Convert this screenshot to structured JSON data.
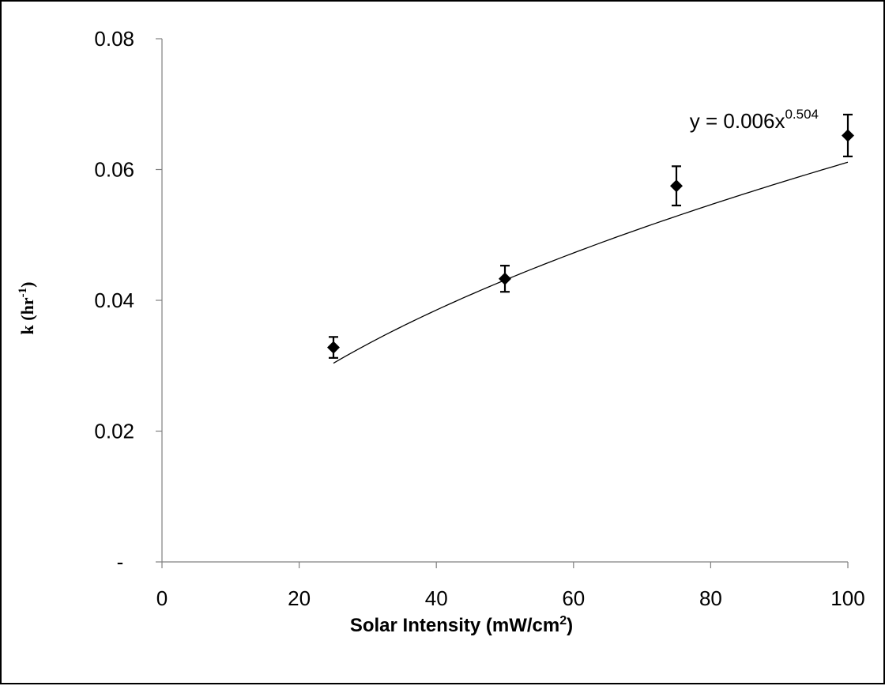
{
  "chart_data": {
    "type": "scatter",
    "xlabel": {
      "text": "Solar Intensity (mW/cm",
      "sup": "2",
      "suffix": ")"
    },
    "ylabel": {
      "text": "k (hr",
      "sup": "-1",
      "suffix": ")"
    },
    "xlim": [
      0,
      100
    ],
    "ylim": [
      0,
      0.08
    ],
    "x_ticks": [
      {
        "value": 0,
        "label": "0"
      },
      {
        "value": 20,
        "label": "20"
      },
      {
        "value": 40,
        "label": "40"
      },
      {
        "value": 60,
        "label": "60"
      },
      {
        "value": 80,
        "label": "80"
      },
      {
        "value": 100,
        "label": "100"
      }
    ],
    "y_ticks": [
      {
        "value": 0,
        "label": "-"
      },
      {
        "value": 0.02,
        "label": "0.02"
      },
      {
        "value": 0.04,
        "label": "0.04"
      },
      {
        "value": 0.06,
        "label": "0.06"
      },
      {
        "value": 0.08,
        "label": "0.08"
      }
    ],
    "series": [
      {
        "marker": "diamond",
        "color": "#000000",
        "points": [
          {
            "x": 25,
            "y": 0.0328,
            "err": 0.0016
          },
          {
            "x": 50,
            "y": 0.0433,
            "err": 0.002
          },
          {
            "x": 75,
            "y": 0.0575,
            "err": 0.003
          },
          {
            "x": 100,
            "y": 0.0652,
            "err": 0.0032
          }
        ]
      }
    ],
    "trendline": {
      "type": "power",
      "coefficient": 0.006,
      "exponent": 0.504,
      "x_range": [
        25,
        100
      ],
      "equation": {
        "text": "y = 0.006x",
        "sup": "0.504"
      }
    },
    "grid": false,
    "legend": "none"
  }
}
